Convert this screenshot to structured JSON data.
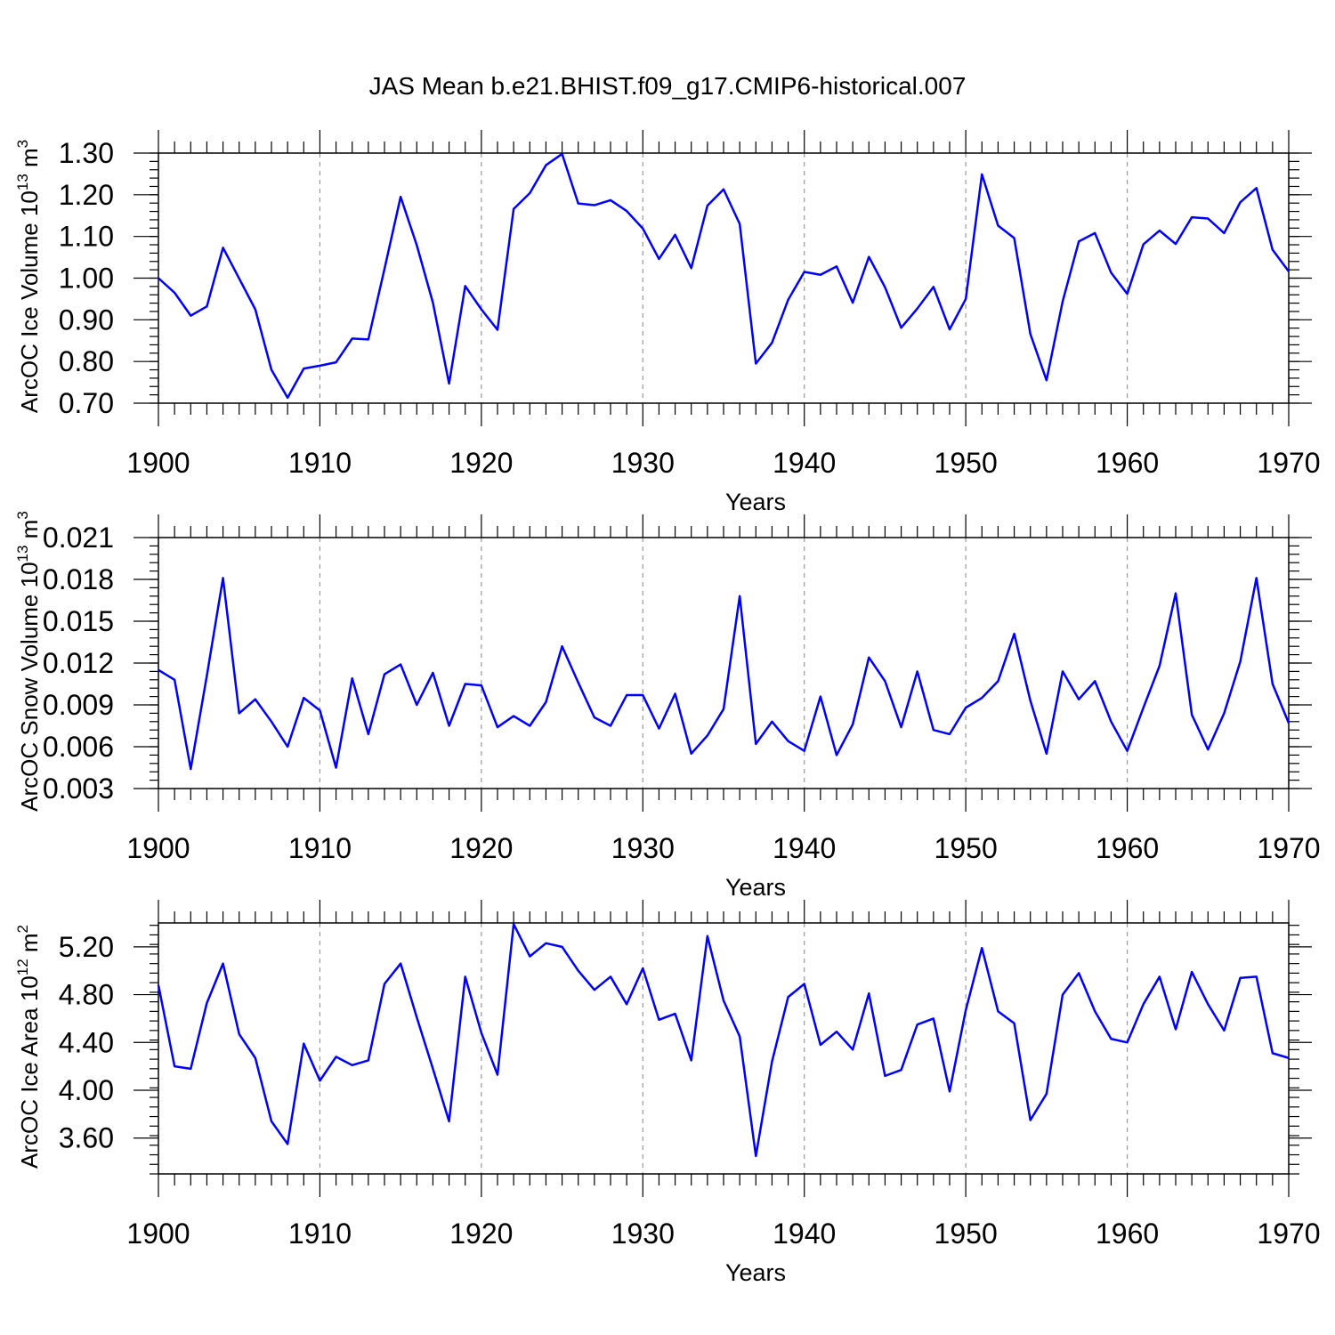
{
  "title": "JAS Mean b.e21.BHIST.f09_g17.CMIP6-historical.007",
  "chart_data": [
    {
      "type": "line",
      "ylabel": "ArcOC Ice Volume 10",
      "ylabel_exp": "13",
      "ylabel_unit": " m",
      "ylabel_unit_exp": "3",
      "xlabel": "Years",
      "xlim": [
        1900,
        1970
      ],
      "ylim": [
        0.7,
        1.3
      ],
      "yticks": [
        0.7,
        0.8,
        0.9,
        1.0,
        1.1,
        1.2,
        1.3
      ],
      "ytick_labels": [
        "0.70",
        "0.80",
        "0.90",
        "1.00",
        "1.10",
        "1.20",
        "1.30"
      ],
      "xticks": [
        1900,
        1910,
        1920,
        1930,
        1940,
        1950,
        1960,
        1970
      ],
      "xtick_labels": [
        "1900",
        "1910",
        "1920",
        "1930",
        "1940",
        "1950",
        "1960",
        "1970"
      ],
      "x_start": 1900,
      "values": [
        1.0,
        0.965,
        0.91,
        0.932,
        1.073,
        0.999,
        0.925,
        0.78,
        0.713,
        0.783,
        0.79,
        0.798,
        0.855,
        0.853,
        1.022,
        1.195,
        1.079,
        0.941,
        0.747,
        0.981,
        0.925,
        0.876,
        1.166,
        1.204,
        1.271,
        1.298,
        1.179,
        1.175,
        1.187,
        1.161,
        1.119,
        1.046,
        1.104,
        1.024,
        1.174,
        1.213,
        1.13,
        0.795,
        0.845,
        0.948,
        1.015,
        1.008,
        1.028,
        0.941,
        1.051,
        0.978,
        0.881,
        0.927,
        0.979,
        0.877,
        0.95,
        1.249,
        1.126,
        1.096,
        0.866,
        0.755,
        0.944,
        1.088,
        1.108,
        1.013,
        0.962,
        1.081,
        1.114,
        1.082,
        1.146,
        1.143,
        1.108,
        1.182,
        1.216,
        1.068,
        1.016
      ]
    },
    {
      "type": "line",
      "ylabel": "ArcOC Snow Volume 10",
      "ylabel_exp": "13",
      "ylabel_unit": " m",
      "ylabel_unit_exp": "3",
      "xlabel": "Years",
      "xlim": [
        1900,
        1970
      ],
      "ylim": [
        0.003,
        0.021
      ],
      "yticks": [
        0.003,
        0.006,
        0.009,
        0.012,
        0.015,
        0.018,
        0.021
      ],
      "ytick_labels": [
        "0.003",
        "0.006",
        "0.009",
        "0.012",
        "0.015",
        "0.018",
        "0.021"
      ],
      "xticks": [
        1900,
        1910,
        1920,
        1930,
        1940,
        1950,
        1960,
        1970
      ],
      "xtick_labels": [
        "1900",
        "1910",
        "1920",
        "1930",
        "1940",
        "1950",
        "1960",
        "1970"
      ],
      "x_start": 1900,
      "values": [
        0.0115,
        0.0108,
        0.0044,
        0.0111,
        0.0181,
        0.0084,
        0.0094,
        0.0078,
        0.006,
        0.0095,
        0.0086,
        0.0045,
        0.0109,
        0.0069,
        0.0112,
        0.0119,
        0.009,
        0.0113,
        0.0075,
        0.0105,
        0.0104,
        0.0074,
        0.0082,
        0.0075,
        0.0092,
        0.0132,
        0.0106,
        0.0081,
        0.0075,
        0.0097,
        0.0097,
        0.0073,
        0.0098,
        0.0055,
        0.0068,
        0.0087,
        0.0168,
        0.0062,
        0.0078,
        0.0064,
        0.0057,
        0.0096,
        0.0054,
        0.0076,
        0.0124,
        0.0107,
        0.0074,
        0.0114,
        0.0072,
        0.0069,
        0.0088,
        0.0095,
        0.0107,
        0.0141,
        0.0093,
        0.0055,
        0.0114,
        0.0094,
        0.0107,
        0.0078,
        0.0057,
        0.0088,
        0.0118,
        0.017,
        0.0083,
        0.0058,
        0.0084,
        0.0121,
        0.0181,
        0.0105,
        0.0077
      ]
    },
    {
      "type": "line",
      "ylabel": "ArcOC Ice Area 10",
      "ylabel_exp": "12",
      "ylabel_unit": " m",
      "ylabel_unit_exp": "2",
      "xlabel": "Years",
      "xlim": [
        1900,
        1970
      ],
      "ylim": [
        3.3,
        5.4
      ],
      "yticks": [
        3.6,
        4.0,
        4.4,
        4.8,
        5.2
      ],
      "ytick_labels": [
        "3.60",
        "4.00",
        "4.40",
        "4.80",
        "5.20"
      ],
      "xticks": [
        1900,
        1910,
        1920,
        1930,
        1940,
        1950,
        1960,
        1970
      ],
      "xtick_labels": [
        "1900",
        "1910",
        "1920",
        "1930",
        "1940",
        "1950",
        "1960",
        "1970"
      ],
      "x_start": 1900,
      "values": [
        4.88,
        4.2,
        4.18,
        4.73,
        5.06,
        4.47,
        4.27,
        3.74,
        3.55,
        4.39,
        4.08,
        4.28,
        4.21,
        4.25,
        4.89,
        5.06,
        4.61,
        4.18,
        3.74,
        4.95,
        4.48,
        4.13,
        5.39,
        5.12,
        5.23,
        5.2,
        5.0,
        4.84,
        4.95,
        4.72,
        5.02,
        4.59,
        4.64,
        4.25,
        5.29,
        4.75,
        4.45,
        3.45,
        4.24,
        4.78,
        4.89,
        4.38,
        4.49,
        4.34,
        4.81,
        4.12,
        4.17,
        4.55,
        4.6,
        3.99,
        4.67,
        5.19,
        4.66,
        4.56,
        3.75,
        3.97,
        4.8,
        4.98,
        4.66,
        4.43,
        4.4,
        4.72,
        4.95,
        4.51,
        4.99,
        4.72,
        4.5,
        4.94,
        4.95,
        4.31,
        4.27
      ]
    }
  ]
}
